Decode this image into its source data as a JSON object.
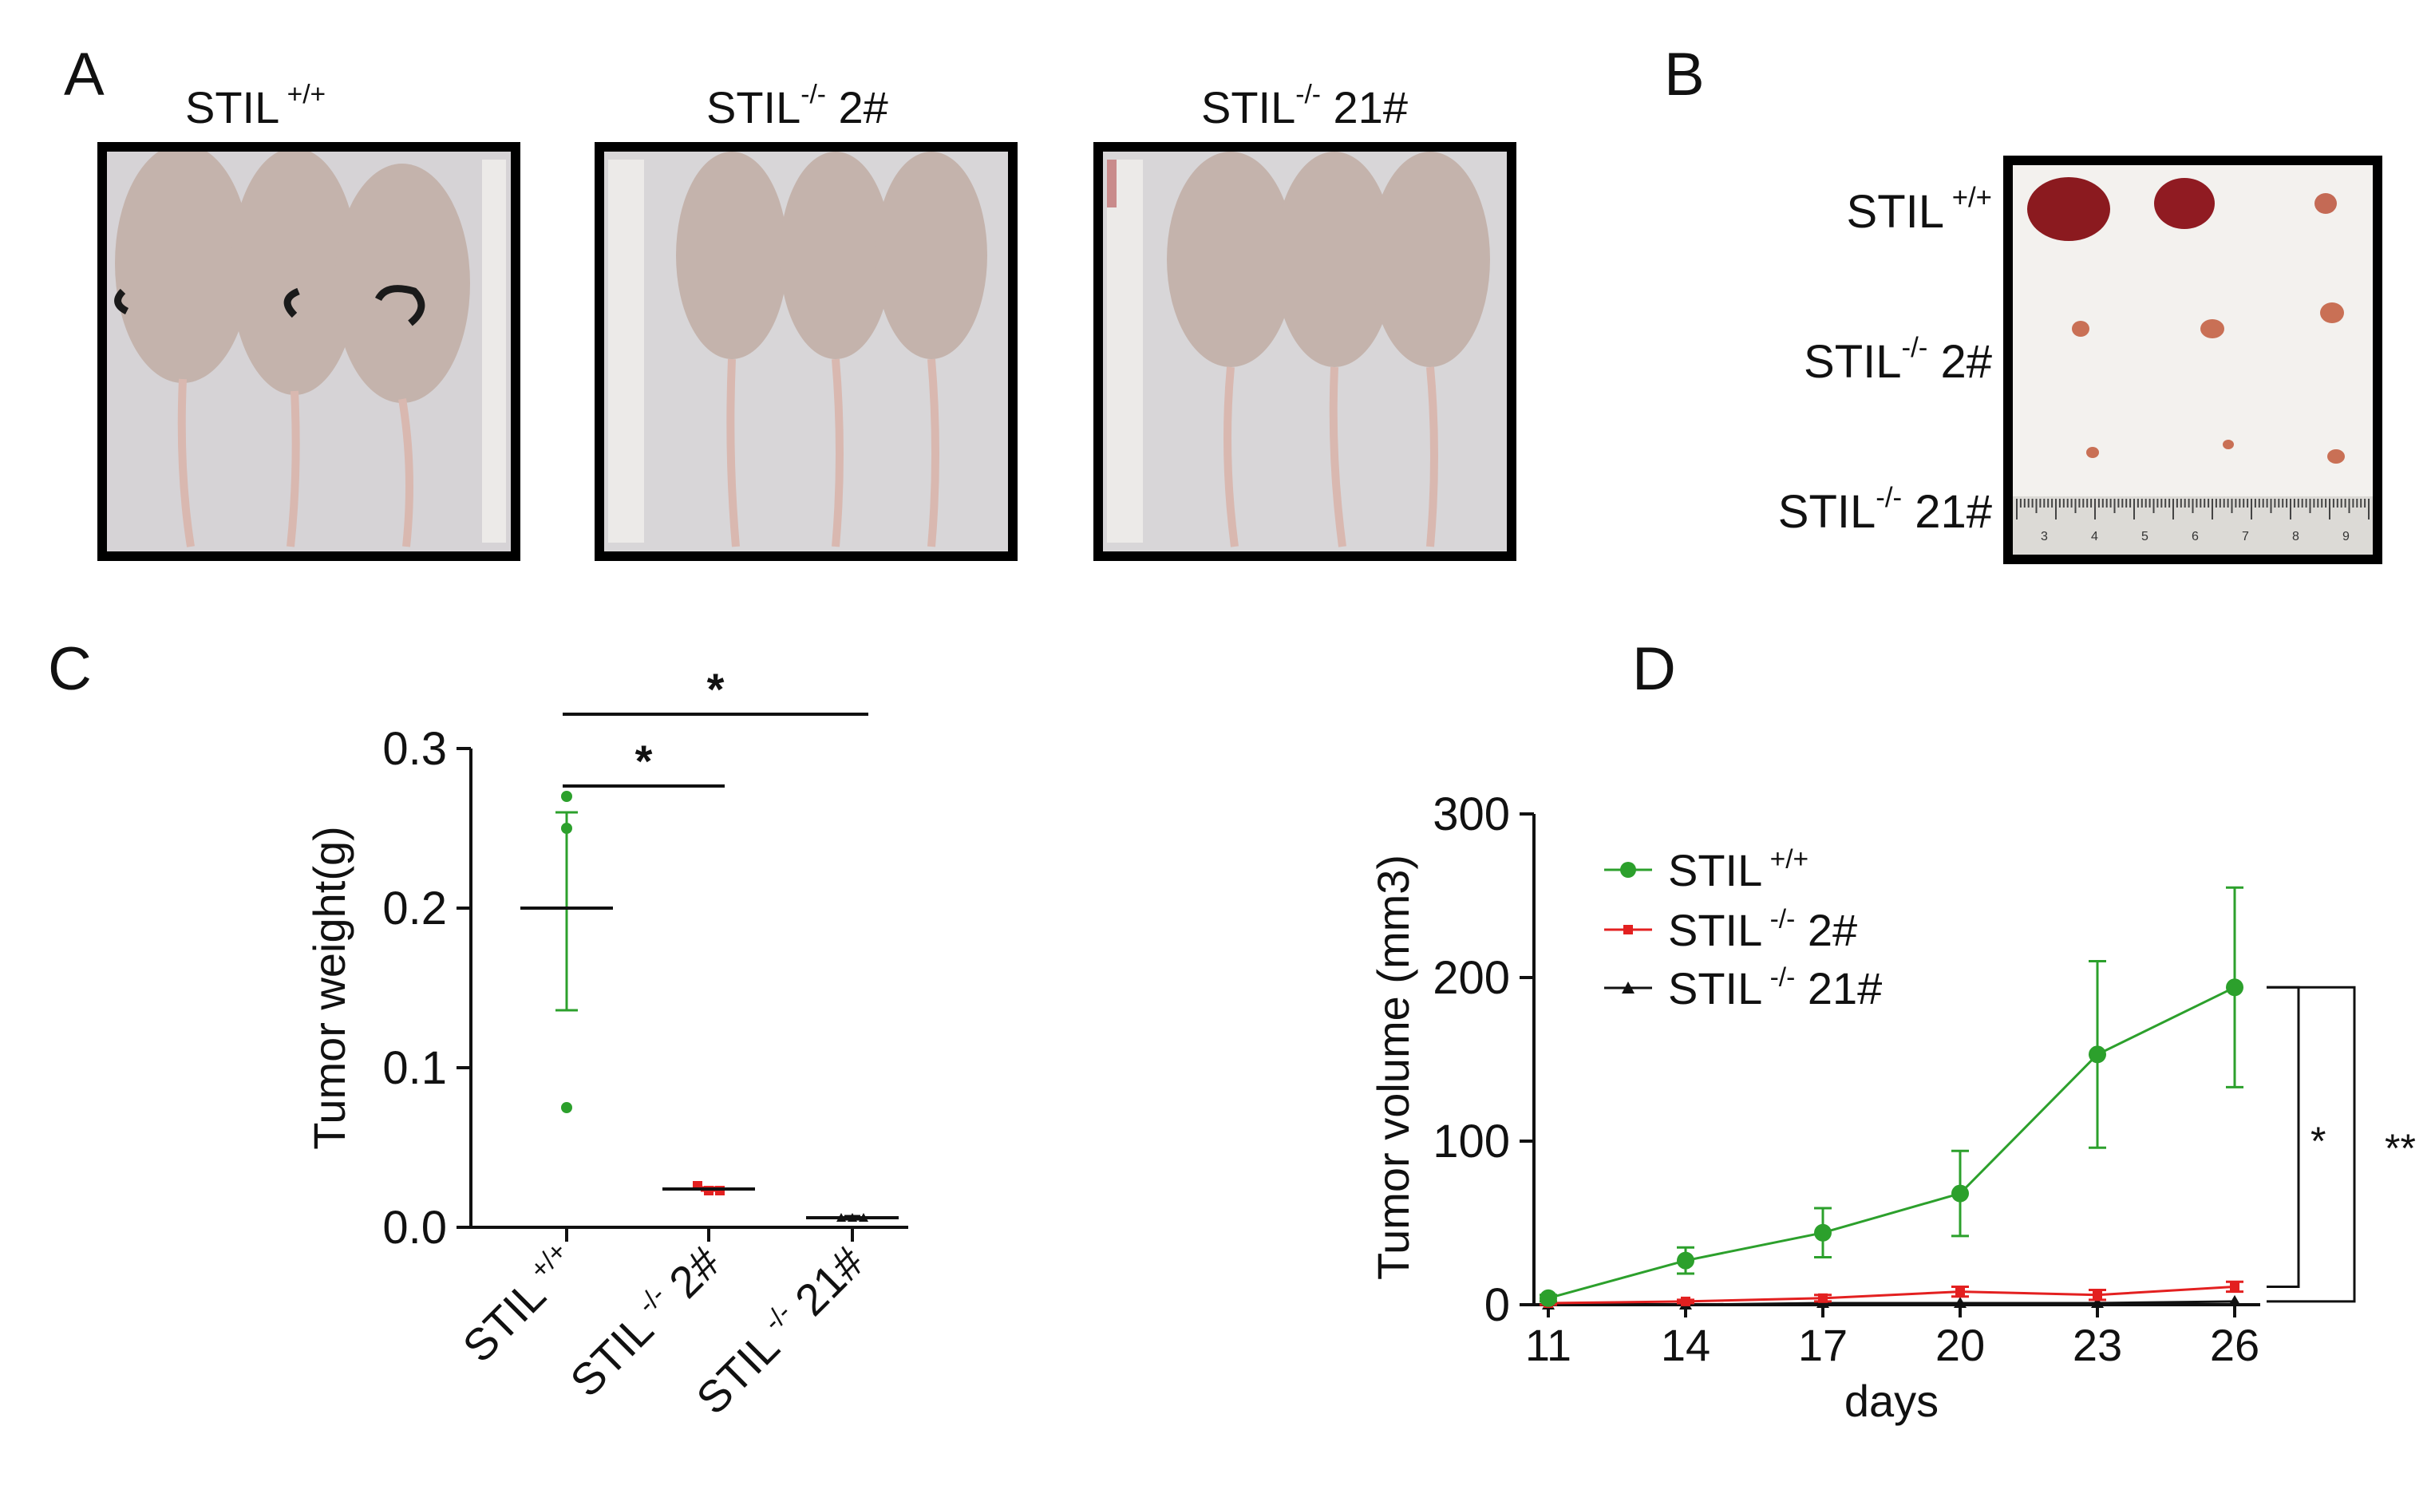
{
  "panels": {
    "A": {
      "letter": "A",
      "photos": [
        {
          "base": "STIL",
          "sup": "+/+",
          "tail": ""
        },
        {
          "base": "STIL",
          "sup": "-/-",
          "tail": " 2#"
        },
        {
          "base": "STIL",
          "sup": "-/-",
          "tail": " 21#"
        }
      ]
    },
    "B": {
      "letter": "B",
      "rows": [
        {
          "base": "STIL",
          "sup": "+/+",
          "tail": ""
        },
        {
          "base": "STIL",
          "sup": "-/-",
          "tail": " 2#"
        },
        {
          "base": "STIL",
          "sup": "-/-",
          "tail": " 21#"
        }
      ],
      "ruler_numbers": [
        "3",
        "4",
        "5",
        "6",
        "7",
        "8",
        "9"
      ]
    },
    "C": {
      "letter": "C"
    },
    "D": {
      "letter": "D"
    }
  },
  "colors": {
    "wt": "#2ca02c",
    "ko2": "#e32020",
    "ko21": "#111111",
    "axis": "#111111"
  },
  "chart_data": [
    {
      "type": "scatter",
      "panel": "C",
      "ylabel": "Tumor weight(g)",
      "ylim": [
        0,
        0.3
      ],
      "yticks": [
        "0.0",
        "0.1",
        "0.2",
        "0.3"
      ],
      "groups": [
        {
          "label_base": "STIL",
          "label_sup": "+/+",
          "label_tail": "",
          "color_key": "wt",
          "points": [
            0.27,
            0.25,
            0.075
          ],
          "mean": 0.2,
          "sem_low": 0.136,
          "sem_high": 0.26
        },
        {
          "label_base": "STIL",
          "label_sup": "-/-",
          "label_tail": " 2#",
          "color_key": "ko2",
          "points": [
            0.026,
            0.023,
            0.023
          ],
          "mean": 0.024,
          "sem_low": 0.023,
          "sem_high": 0.025
        },
        {
          "label_base": "STIL",
          "label_sup": "-/-",
          "label_tail": " 21#",
          "color_key": "ko21",
          "points": [
            0.006,
            0.006,
            0.006
          ],
          "mean": 0.006,
          "sem_low": 0.005,
          "sem_high": 0.007
        }
      ],
      "significance": [
        {
          "from": 0,
          "to": 1,
          "label": "*"
        },
        {
          "from": 0,
          "to": 2,
          "label": "*"
        }
      ]
    },
    {
      "type": "line",
      "panel": "D",
      "xlabel": "days",
      "ylabel": "Tumor volume (mm3)",
      "x": [
        11,
        14,
        17,
        20,
        23,
        26
      ],
      "xticks": [
        "11",
        "14",
        "17",
        "20",
        "23",
        "26"
      ],
      "ylim": [
        0,
        300
      ],
      "yticks": [
        "0",
        "100",
        "200",
        "300"
      ],
      "series": [
        {
          "name_base": "STIL",
          "name_sup": "+/+",
          "name_tail": "",
          "color_key": "wt",
          "marker": "circle",
          "values": [
            4,
            27,
            44,
            68,
            153,
            194
          ],
          "err": [
            2,
            8,
            15,
            26,
            57,
            61
          ]
        },
        {
          "name_base": "STIL",
          "name_sup": "-/-",
          "name_tail": " 2#",
          "color_key": "ko2",
          "marker": "square",
          "values": [
            1,
            2,
            4,
            8,
            6,
            11
          ],
          "err": [
            1,
            1,
            2,
            3,
            3,
            3
          ]
        },
        {
          "name_base": "STIL",
          "name_sup": "-/-",
          "name_tail": " 21#",
          "color_key": "ko21",
          "marker": "triangle",
          "values": [
            0,
            0,
            1,
            1,
            1,
            2
          ],
          "err": [
            0,
            0,
            0,
            0,
            0,
            0
          ]
        }
      ],
      "significance": [
        {
          "label": "*",
          "between": [
            0,
            1
          ]
        },
        {
          "label": "**",
          "between": [
            0,
            2
          ]
        }
      ]
    }
  ]
}
